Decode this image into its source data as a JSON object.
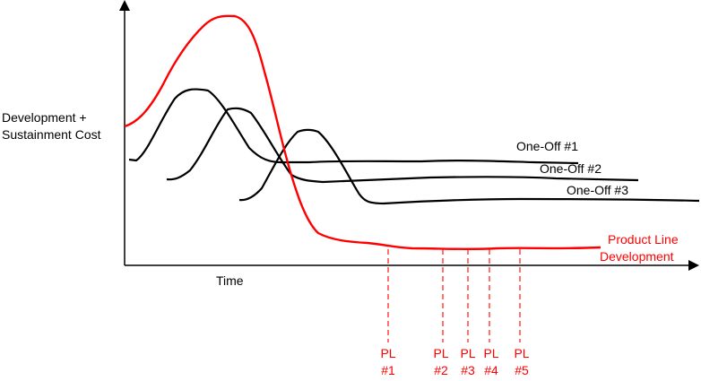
{
  "axes": {
    "y_label_line1": "Development +",
    "y_label_line2": "Sustainment Cost",
    "x_label": "Time"
  },
  "curves": {
    "one_off_1": "One-Off #1",
    "one_off_2": "One-Off #2",
    "one_off_3": "One-Off #3",
    "product_line_line1": "Product Line",
    "product_line_line2": "Development"
  },
  "markers": [
    {
      "line1": "PL",
      "line2": "#1"
    },
    {
      "line1": "PL",
      "line2": "#2"
    },
    {
      "line1": "PL",
      "line2": "#3"
    },
    {
      "line1": "PL",
      "line2": "#4"
    },
    {
      "line1": "PL",
      "line2": "#5"
    }
  ],
  "colors": {
    "product_line": "#ff0000",
    "one_off": "#000000",
    "axis": "#000000"
  }
}
